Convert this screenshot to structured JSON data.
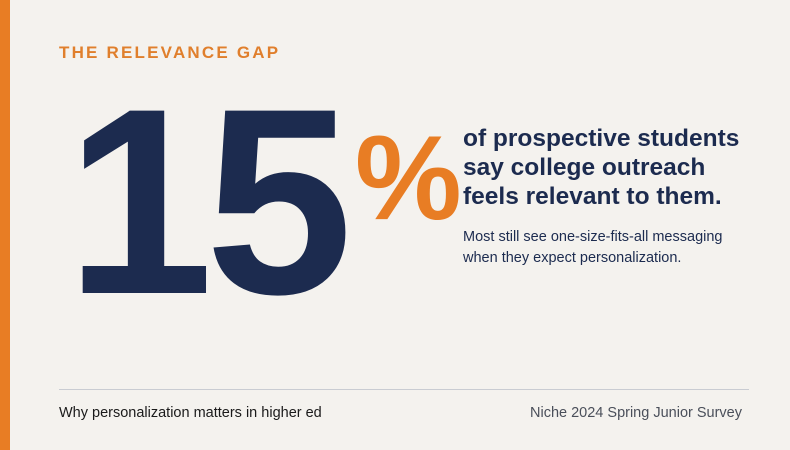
{
  "eyebrow": "THE RELEVANCE GAP",
  "stat": {
    "number": "15",
    "symbol": "%"
  },
  "headline": {
    "line1": "of prospective students",
    "line2": "say college outreach",
    "line3": "feels relevant to them."
  },
  "subtext": {
    "line1": "Most still see one-size-fits-all messaging",
    "line2": "when they expect personalization."
  },
  "footer": {
    "left": "Why personalization matters in higher ed",
    "right": "Niche 2024 Spring Junior Survey"
  },
  "colors": {
    "accent": "#e87d24",
    "navy": "#1c2b4f",
    "background": "#f4f2ee"
  }
}
